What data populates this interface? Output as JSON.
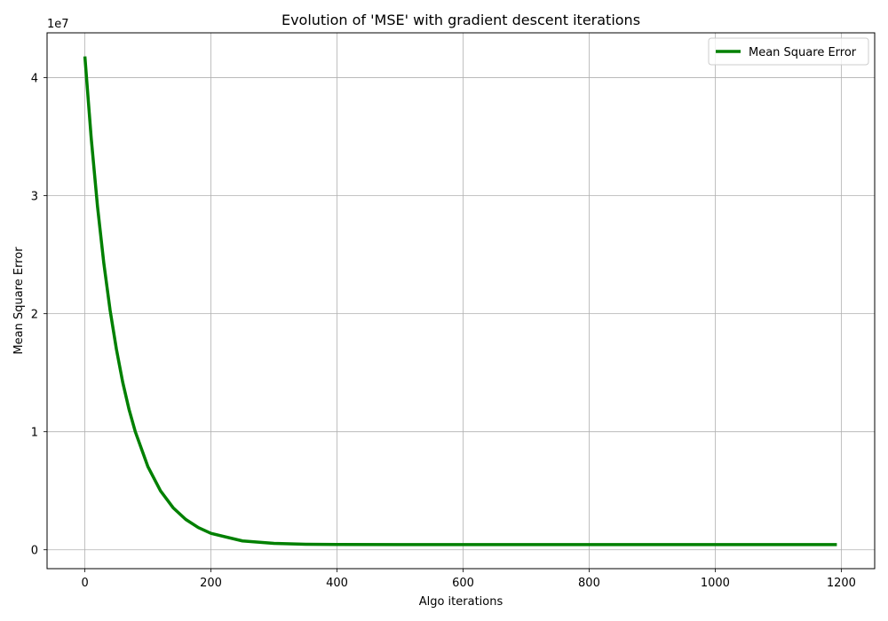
{
  "chart_data": {
    "type": "line",
    "title": "Evolution of 'MSE' with gradient descent iterations",
    "xlabel": "Algo iterations",
    "ylabel": "Mean Square Error",
    "y_multiplier_label": "1e7",
    "xlim": [
      -60,
      1253
    ],
    "ylim": [
      -1600000,
      43800000
    ],
    "x_ticks": [
      0,
      200,
      400,
      600,
      800,
      1000,
      1200
    ],
    "x_tick_labels": [
      "0",
      "200",
      "400",
      "600",
      "800",
      "1000",
      "1200"
    ],
    "y_ticks": [
      0,
      10000000,
      20000000,
      30000000,
      40000000
    ],
    "y_tick_labels": [
      "0",
      "1",
      "2",
      "3",
      "4"
    ],
    "grid": true,
    "legend_position": "top-right",
    "series": [
      {
        "name": "Mean Square Error",
        "color": "#008000",
        "x": [
          0,
          10,
          20,
          30,
          40,
          50,
          60,
          70,
          80,
          100,
          120,
          140,
          160,
          180,
          200,
          250,
          300,
          350,
          400,
          500,
          600,
          700,
          800,
          900,
          1000,
          1100,
          1193
        ],
        "y": [
          41800000,
          34900000,
          29100000,
          24300000,
          20300000,
          17000000,
          14200000,
          11900000,
          10000000,
          7040000,
          4990000,
          3560000,
          2570000,
          1880000,
          1390000,
          750000,
          540000,
          470000,
          450000,
          440000,
          440000,
          440000,
          440000,
          440000,
          440000,
          440000,
          440000
        ]
      }
    ]
  }
}
